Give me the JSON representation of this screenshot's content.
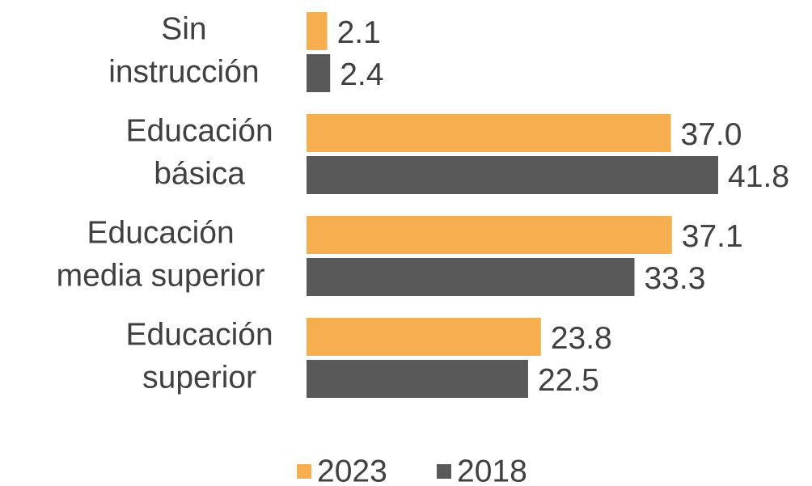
{
  "chart_data": {
    "type": "hbar",
    "categories": [
      [
        "Sin",
        "instrucción"
      ],
      [
        "Educación",
        "básica"
      ],
      [
        "Educación",
        "media superior"
      ],
      [
        "Educación",
        "superior"
      ]
    ],
    "series": [
      {
        "name": "2023",
        "color": "#f7ae4e",
        "values": [
          2.1,
          37.0,
          37.1,
          23.8
        ],
        "value_labels": [
          "2.1",
          "37.0",
          "37.1",
          "23.8"
        ]
      },
      {
        "name": "2018",
        "color": "#595959",
        "values": [
          2.4,
          41.8,
          33.3,
          22.5
        ],
        "value_labels": [
          "2.4",
          "41.8",
          "33.3",
          "22.5"
        ]
      }
    ],
    "legend": "bottom"
  }
}
